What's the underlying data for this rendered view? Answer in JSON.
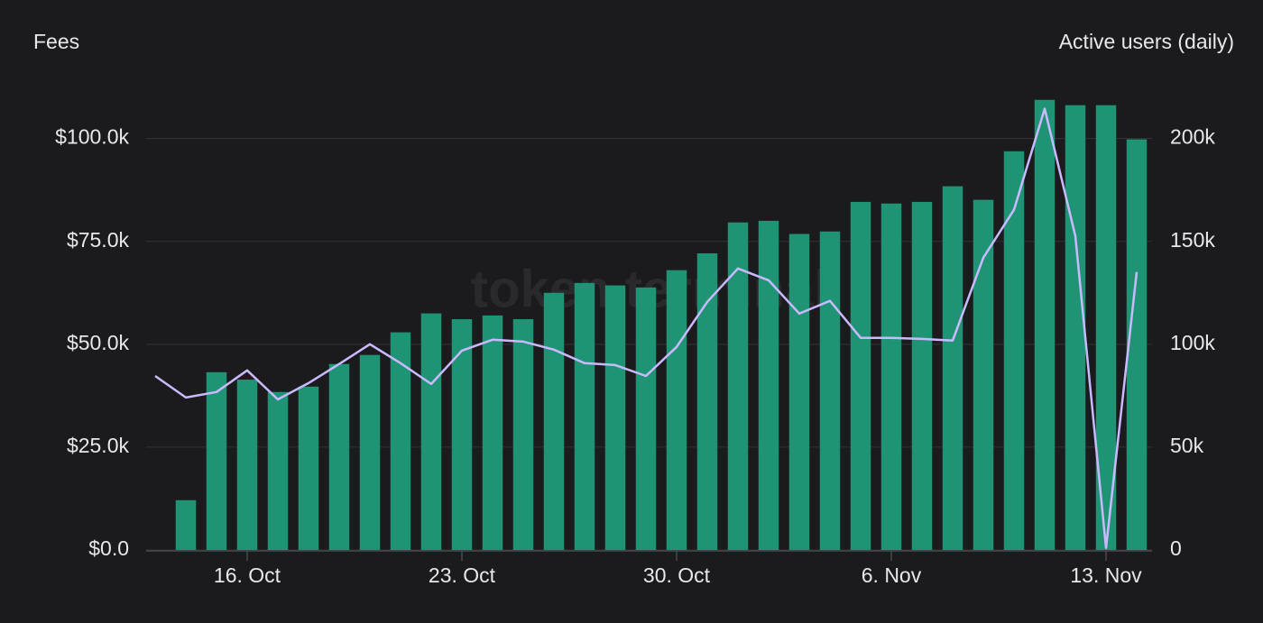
{
  "chart_data": {
    "type": "bar",
    "watermark": "token terminal",
    "categories": [
      null,
      null,
      null,
      "16. Oct",
      null,
      null,
      null,
      null,
      null,
      null,
      "23. Oct",
      null,
      null,
      null,
      null,
      null,
      null,
      "30. Oct",
      null,
      null,
      null,
      null,
      null,
      null,
      "6. Nov",
      null,
      null,
      null,
      null,
      null,
      null,
      "13. Nov",
      null
    ],
    "series": [
      {
        "name": "Fees",
        "type": "bar",
        "color": "#1f9474",
        "values": [
          null,
          12100,
          43200,
          41400,
          38400,
          39700,
          45200,
          47400,
          52900,
          57500,
          56100,
          57000,
          56100,
          62500,
          64900,
          64300,
          63800,
          68000,
          72100,
          79600,
          80000,
          76800,
          77400,
          84600,
          84200,
          84600,
          88400,
          85100,
          96900,
          109400,
          108100,
          108100,
          99800
        ]
      },
      {
        "name": "Active users (daily)",
        "type": "line",
        "axis": "y2",
        "color": "#cbb9ff",
        "values": [
          84600,
          74100,
          76800,
          87300,
          73200,
          81100,
          90400,
          100000,
          90800,
          80700,
          96900,
          102200,
          101300,
          97400,
          90800,
          89900,
          84600,
          98700,
          120600,
          136800,
          131100,
          114900,
          121100,
          103100,
          103100,
          102600,
          101800,
          142100,
          165400,
          214500,
          152600,
          1000,
          135100
        ]
      }
    ],
    "ylim": [
      0,
      110000
    ],
    "yticks": [
      {
        "value": 0,
        "label": "$0.0"
      },
      {
        "value": 25000,
        "label": "$25.0k"
      },
      {
        "value": 50000,
        "label": "$50.0k"
      },
      {
        "value": 75000,
        "label": "$75.0k"
      },
      {
        "value": 100000,
        "label": "$100.0k"
      }
    ],
    "y2lim": [
      0,
      220000
    ],
    "y2ticks": [
      0,
      {
        "value": 50000,
        "label": "50k"
      },
      {
        "value": 100000,
        "label": "100k"
      },
      {
        "value": 150000,
        "label": "150k"
      },
      {
        "value": 200000,
        "label": "200k"
      }
    ],
    "grid": true
  }
}
